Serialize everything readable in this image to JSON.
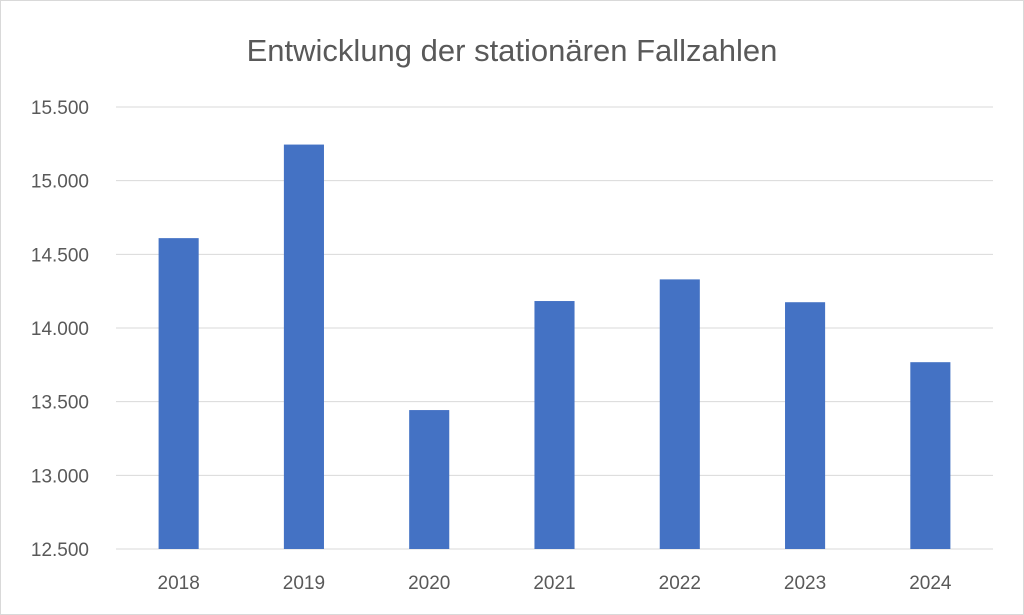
{
  "chart_data": {
    "type": "bar",
    "title": "Entwicklung der stationären Fallzahlen",
    "categories": [
      "2018",
      "2019",
      "2020",
      "2021",
      "2022",
      "2023",
      "2024"
    ],
    "values": [
      14610,
      15245,
      13443,
      14183,
      14330,
      14175,
      13768
    ],
    "ylim": [
      12500,
      15500
    ],
    "yticks": [
      12500,
      13000,
      13500,
      14000,
      14500,
      15000,
      15500
    ],
    "ytick_labels": [
      "12.500",
      "13.000",
      "13.500",
      "14.000",
      "14.500",
      "15.000",
      "15.500"
    ],
    "xlabel": "",
    "ylabel": "",
    "grid": true,
    "legend": "none",
    "bar_color": "#4472c4",
    "grid_color": "#d9d9d9",
    "text_color": "#595959"
  }
}
